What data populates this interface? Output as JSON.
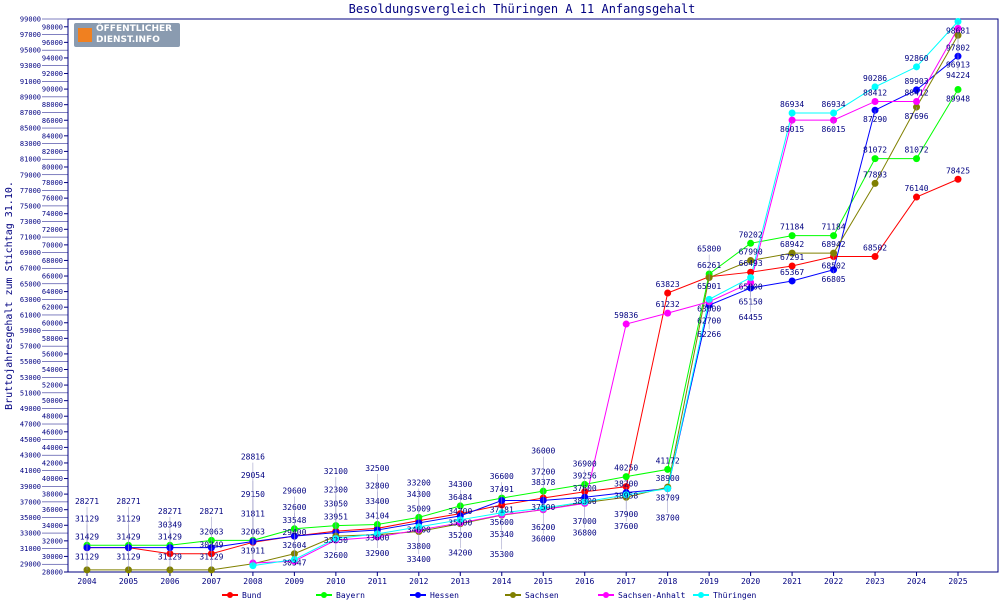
{
  "logo": {
    "line1": "ÖFFENTLICHER",
    "line2": "DIENST.INFO"
  },
  "chart_data": {
    "type": "line",
    "title": "Besoldungsvergleich Thüringen A 11 Anfangsgehalt",
    "xlabel": "",
    "ylabel": "Bruttojahresgehalt zum Stichtag 31.10.",
    "ylim": [
      28000,
      99000
    ],
    "ytick_step": 1000,
    "grid": false,
    "legend": "bottom",
    "x": [
      2004,
      2005,
      2006,
      2007,
      2008,
      2009,
      2010,
      2011,
      2012,
      2013,
      2014,
      2015,
      2016,
      2017,
      2018,
      2019,
      2020,
      2021,
      2022,
      2023,
      2024,
      2025
    ],
    "series": [
      {
        "name": "Bund",
        "color": "#ff0000",
        "values": [
          31129,
          31129,
          30349,
          30349,
          31811,
          32600,
          33250,
          33600,
          34600,
          35500,
          36600,
          37500,
          38300,
          38958,
          63823,
          65901,
          66493,
          67291,
          68502,
          68502,
          76140,
          78425
        ]
      },
      {
        "name": "Bayern",
        "color": "#00ff00",
        "values": [
          31429,
          31429,
          31429,
          32063,
          32063,
          33548,
          33951,
          34104,
          35009,
          36484,
          37491,
          38378,
          39256,
          40250,
          41172,
          66261,
          70202,
          71184,
          71184,
          81072,
          81072,
          89948
        ]
      },
      {
        "name": "Hessen",
        "color": "#0000ff",
        "values": [
          31129,
          31129,
          31129,
          31129,
          31911,
          32604,
          33050,
          33400,
          34300,
          35200,
          37181,
          37200,
          37600,
          38200,
          38709,
          62266,
          64455,
          65367,
          66805,
          87290,
          89903,
          94224
        ]
      },
      {
        "name": "Sachsen",
        "color": "#808000",
        "values": [
          28271,
          28271,
          28271,
          28271,
          29054,
          30347,
          32600,
          32800,
          33200,
          34200,
          35300,
          36000,
          36900,
          37600,
          38900,
          65800,
          67990,
          68942,
          68942,
          77893,
          87696,
          96913
        ]
      },
      {
        "name": "Sachsen-Anhalt",
        "color": "#ff00ff",
        "values": [
          null,
          null,
          null,
          null,
          29150,
          29400,
          32100,
          32500,
          33400,
          34300,
          35340,
          36000,
          36800,
          59836,
          61232,
          62700,
          65150,
          86015,
          86015,
          88412,
          88412,
          97802
        ]
      },
      {
        "name": "Thüringen",
        "color": "#00ffff",
        "values": [
          null,
          null,
          null,
          null,
          28816,
          29600,
          32300,
          32900,
          33800,
          34700,
          35600,
          36200,
          37000,
          37900,
          38700,
          63000,
          65800,
          86934,
          86934,
          90286,
          92860,
          98681
        ]
      }
    ]
  }
}
